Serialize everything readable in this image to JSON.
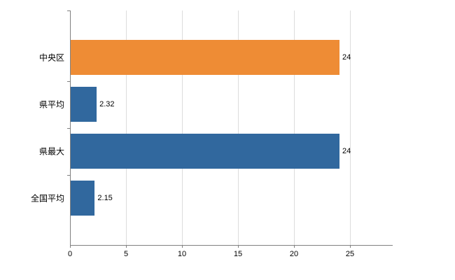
{
  "chart_data": {
    "type": "bar",
    "orientation": "horizontal",
    "title": "",
    "xlabel": "",
    "ylabel": "",
    "categories": [
      "中央区",
      "県平均",
      "県最大",
      "全国平均"
    ],
    "values": [
      24,
      2.32,
      24,
      2.15
    ],
    "value_labels": [
      "24",
      "2.32",
      "24",
      "2.15"
    ],
    "bar_colors": [
      "#EE8C35",
      "#31689E",
      "#31689E",
      "#31689E"
    ],
    "xlim": [
      0,
      28.75
    ],
    "xticks": [
      0,
      5,
      10,
      15,
      20,
      25
    ],
    "grid": "vertical",
    "legend": "none"
  },
  "style_colors": {
    "gridline": "#DDDDDD",
    "axis": "#808080",
    "label_text": "#000000"
  }
}
